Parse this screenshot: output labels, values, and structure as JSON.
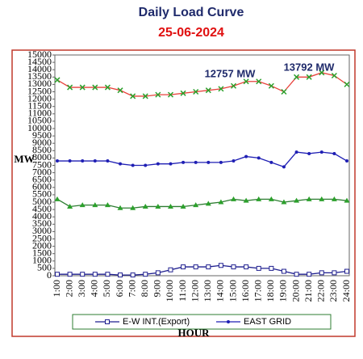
{
  "chart_data": {
    "type": "line",
    "title": "Daily Load Curve",
    "subtitle": "25-06-2024",
    "y_label": "MW",
    "x_label": "HOUR",
    "annotations": [
      "12757 MW",
      "13792 MW"
    ],
    "categories": [
      "1:00",
      "2:00",
      "3:00",
      "4:00",
      "5:00",
      "6:00",
      "7:00",
      "8:00",
      "9:00",
      "10:00",
      "11:00",
      "12:00",
      "13:00",
      "14:00",
      "15:00",
      "16:00",
      "17:00",
      "18:00",
      "19:00",
      "20:00",
      "21:00",
      "22:00",
      "23:00",
      "24:00"
    ],
    "ylim": [
      0,
      15000
    ],
    "yticks": [
      0,
      500,
      1000,
      1500,
      2000,
      2500,
      3000,
      3500,
      4000,
      4500,
      5000,
      5500,
      6000,
      6500,
      7000,
      7500,
      8000,
      8500,
      9000,
      9500,
      10000,
      10500,
      11000,
      11500,
      12000,
      12500,
      13000,
      13500,
      14000,
      14500,
      15000
    ],
    "series": [
      {
        "color": "#e8423c",
        "marker": "x",
        "marker_color": "#2ca02c",
        "values": [
          13300,
          12800,
          12800,
          12800,
          12800,
          12600,
          12200,
          12200,
          12300,
          12300,
          12400,
          12500,
          12600,
          12700,
          12900,
          13200,
          13200,
          12900,
          12500,
          13500,
          13500,
          13800,
          13600,
          13000
        ]
      },
      {
        "name": "EAST GRID",
        "color": "#1f1fb4",
        "marker": "dot",
        "marker_color": "#1f1fb4",
        "values": [
          7800,
          7800,
          7800,
          7800,
          7800,
          7600,
          7500,
          7500,
          7600,
          7600,
          7700,
          7700,
          7700,
          7700,
          7800,
          8100,
          8000,
          7700,
          7400,
          8400,
          8300,
          8400,
          8300,
          7800
        ]
      },
      {
        "color": "#2e7d32",
        "marker": "triangle",
        "marker_color": "#2ca02c",
        "values": [
          5200,
          4700,
          4800,
          4800,
          4800,
          4600,
          4600,
          4700,
          4700,
          4700,
          4700,
          4800,
          4900,
          5000,
          5200,
          5100,
          5200,
          5200,
          5000,
          5100,
          5200,
          5200,
          5200,
          5100
        ]
      },
      {
        "name": "E-W INT.(Export)",
        "color": "#1f1f8f",
        "marker": "square",
        "marker_color": "#1f1f8f",
        "values": [
          100,
          100,
          100,
          100,
          100,
          50,
          50,
          100,
          200,
          400,
          600,
          600,
          600,
          700,
          600,
          600,
          500,
          500,
          300,
          100,
          100,
          200,
          200,
          300
        ]
      }
    ]
  }
}
